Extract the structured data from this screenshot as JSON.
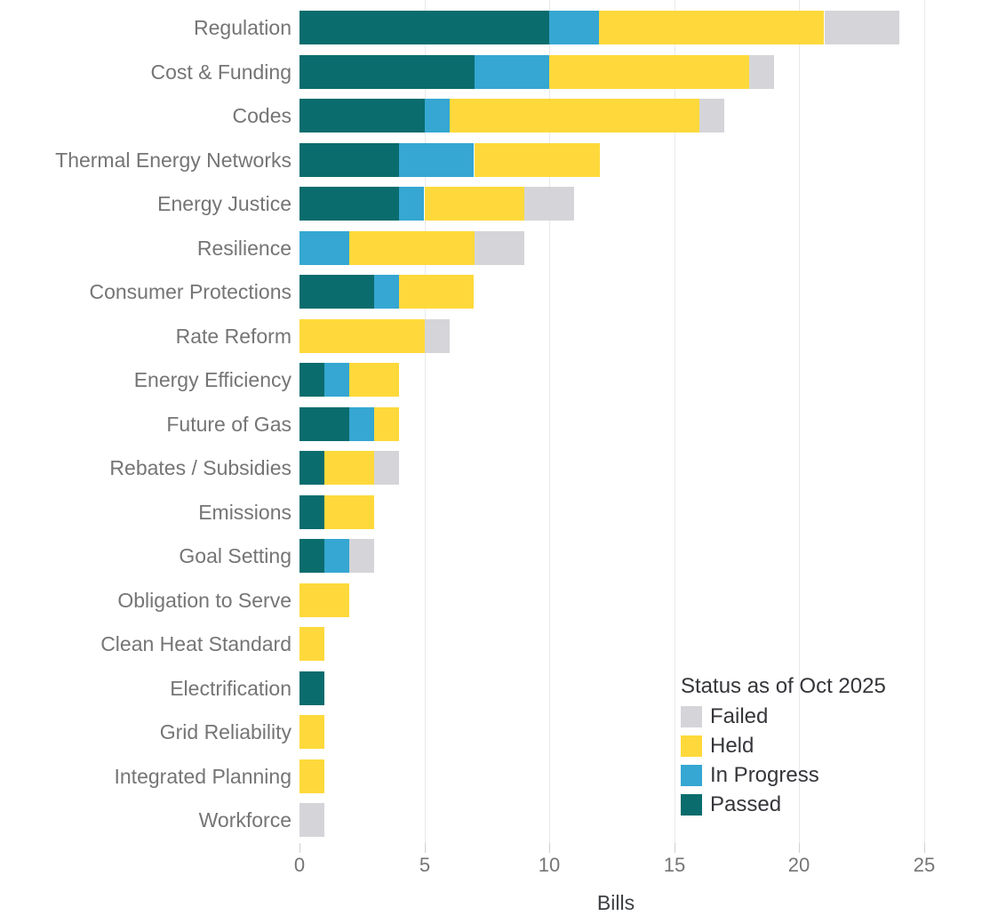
{
  "chart_data": {
    "type": "bar",
    "orientation": "horizontal",
    "stacked": true,
    "xlabel": "Bills",
    "xlim": [
      0,
      25
    ],
    "xticks": [
      0,
      5,
      10,
      15,
      20,
      25
    ],
    "grid": "vertical-light",
    "categories": [
      "Regulation",
      "Cost & Funding",
      "Codes",
      "Thermal Energy Networks",
      "Energy Justice",
      "Resilience",
      "Consumer Protections",
      "Rate Reform",
      "Energy Efficiency",
      "Future of Gas",
      "Rebates / Subsidies",
      "Emissions",
      "Goal Setting",
      "Obligation to Serve",
      "Clean Heat Standard",
      "Electrification",
      "Grid Reliability",
      "Integrated Planning",
      "Workforce"
    ],
    "series": [
      {
        "name": "Passed",
        "color": "#0a6c6d",
        "values": [
          10,
          7,
          5,
          4,
          4,
          0,
          3,
          0,
          1,
          2,
          1,
          1,
          1,
          0,
          0,
          1,
          0,
          0,
          0
        ]
      },
      {
        "name": "In Progress",
        "color": "#35a7d2",
        "values": [
          2,
          3,
          1,
          3,
          1,
          2,
          1,
          0,
          1,
          1,
          0,
          0,
          1,
          0,
          0,
          0,
          0,
          0,
          0
        ]
      },
      {
        "name": "Held",
        "color": "#ffd93b",
        "values": [
          9,
          8,
          10,
          5,
          4,
          5,
          3,
          5,
          2,
          1,
          2,
          2,
          0,
          2,
          1,
          0,
          1,
          1,
          0
        ]
      },
      {
        "name": "Failed",
        "color": "#d5d5d9",
        "values": [
          3,
          1,
          1,
          0,
          2,
          2,
          0,
          1,
          0,
          0,
          1,
          0,
          1,
          0,
          0,
          0,
          0,
          0,
          1
        ]
      }
    ],
    "totals": [
      24,
      19,
      17,
      12,
      11,
      9,
      7,
      6,
      4,
      4,
      4,
      3,
      3,
      2,
      1,
      1,
      1,
      1,
      1
    ],
    "legend_title": "Status as of Oct 2025",
    "legend_position": "inside-bottom-right",
    "legend_items": [
      {
        "label": "Failed",
        "color": "#d5d5d9"
      },
      {
        "label": "Held",
        "color": "#ffd93b"
      },
      {
        "label": "In Progress",
        "color": "#35a7d2"
      },
      {
        "label": "Passed",
        "color": "#0a6c6d"
      }
    ]
  },
  "colors": {
    "background": "#ffffff",
    "category_label": "#757575",
    "tick_label": "#757575",
    "axis_title": "#3c4043",
    "legend_text": "#35363a",
    "gridline": "#e8e9eb"
  }
}
